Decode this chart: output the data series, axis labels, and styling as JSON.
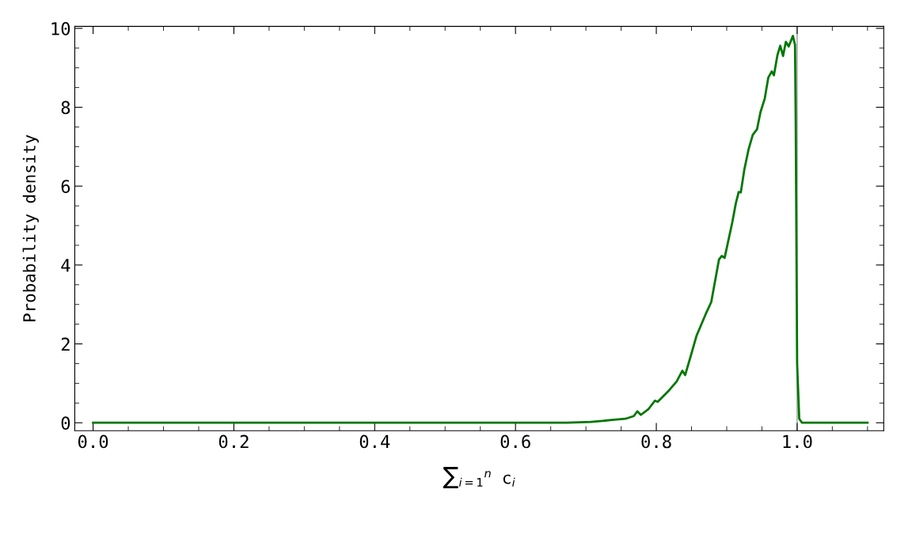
{
  "chart_data": {
    "type": "line",
    "xlabel": "∑$_{i=1}$$^{n}$ c$_{i}$",
    "ylabel": "Probability density",
    "series": [
      {
        "color": "#007700",
        "x": [
          0,
          0.3,
          0.6,
          0.642,
          0.673,
          0.707,
          0.737,
          0.756,
          0.768,
          0.773,
          0.778,
          0.789,
          0.798,
          0.802,
          0.817,
          0.829,
          0.837,
          0.841,
          0.849,
          0.857,
          0.87,
          0.878,
          0.889,
          0.893,
          0.897,
          0.908,
          0.913,
          0.917,
          0.92,
          0.925,
          0.931,
          0.937,
          0.943,
          0.948,
          0.954,
          0.959,
          0.964,
          0.967,
          0.972,
          0.976,
          0.98,
          0.984,
          0.988,
          0.994,
          0.997,
          0.998,
          1.0,
          1.003,
          1.007,
          1.05,
          1.1
        ],
        "values": [
          0,
          0,
          0,
          0,
          0,
          0.02,
          0.07,
          0.1,
          0.17,
          0.29,
          0.2,
          0.35,
          0.56,
          0.53,
          0.8,
          1.05,
          1.32,
          1.21,
          1.7,
          2.2,
          2.75,
          3.06,
          4.14,
          4.23,
          4.18,
          5.09,
          5.57,
          5.85,
          5.84,
          6.42,
          6.93,
          7.3,
          7.44,
          7.88,
          8.22,
          8.75,
          8.91,
          8.81,
          9.32,
          9.56,
          9.3,
          9.66,
          9.54,
          9.81,
          9.58,
          7.6,
          1.5,
          0.1,
          0,
          0,
          0
        ]
      }
    ],
    "ref_lines": [
      {
        "axis": "x",
        "value": 1.0,
        "color": "#999999"
      }
    ],
    "xlim": [
      -0.026,
      1.123
    ],
    "ylim": [
      -0.2,
      10.05
    ],
    "xticks": [
      {
        "value": 0,
        "label": "0.0"
      },
      {
        "value": 0.2,
        "label": "0.2"
      },
      {
        "value": 0.4,
        "label": "0.4"
      },
      {
        "value": 0.6,
        "label": "0.6"
      },
      {
        "value": 0.8,
        "label": "0.8"
      },
      {
        "value": 1.0,
        "label": "1.0"
      },
      {
        "value": 0.05,
        "label": null
      },
      {
        "value": 0.1,
        "label": null
      },
      {
        "value": 0.15,
        "label": null
      },
      {
        "value": 0.25,
        "label": null
      },
      {
        "value": 0.3,
        "label": null
      },
      {
        "value": 0.35,
        "label": null
      },
      {
        "value": 0.45,
        "label": null
      },
      {
        "value": 0.5,
        "label": null
      },
      {
        "value": 0.55,
        "label": null
      },
      {
        "value": 0.65,
        "label": null
      },
      {
        "value": 0.7,
        "label": null
      },
      {
        "value": 0.75,
        "label": null
      },
      {
        "value": 0.85,
        "label": null
      },
      {
        "value": 0.9,
        "label": null
      },
      {
        "value": 0.95,
        "label": null
      },
      {
        "value": 1.05,
        "label": null
      },
      {
        "value": 1.1,
        "label": null
      }
    ],
    "yticks": [
      0,
      2,
      4,
      6,
      8,
      10,
      {
        "value": 0.5,
        "label": null
      },
      {
        "value": 1,
        "label": null
      },
      {
        "value": 1.5,
        "label": null
      },
      {
        "value": 2.5,
        "label": null
      },
      {
        "value": 3,
        "label": null
      },
      {
        "value": 3.5,
        "label": null
      },
      {
        "value": 4.5,
        "label": null
      },
      {
        "value": 5,
        "label": null
      },
      {
        "value": 5.5,
        "label": null
      },
      {
        "value": 6.5,
        "label": null
      },
      {
        "value": 7,
        "label": null
      },
      {
        "value": 7.5,
        "label": null
      },
      {
        "value": 8.5,
        "label": null
      },
      {
        "value": 9,
        "label": null
      },
      {
        "value": 9.5,
        "label": null
      }
    ],
    "grid": false
  }
}
